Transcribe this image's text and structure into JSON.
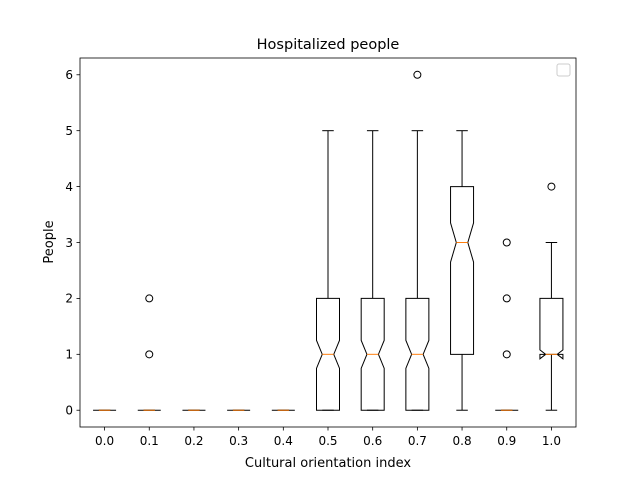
{
  "chart_data": {
    "type": "box",
    "title": "Hospitalized people",
    "xlabel": "Cultural orientation index",
    "ylabel": "People",
    "ylim": [
      -0.3,
      6.3
    ],
    "notched": true,
    "legend": "top-right",
    "categories": [
      "0.0",
      "0.1",
      "0.2",
      "0.3",
      "0.4",
      "0.5",
      "0.6",
      "0.7",
      "0.8",
      "0.9",
      "1.0"
    ],
    "yticks": [
      "0",
      "1",
      "2",
      "3",
      "4",
      "5",
      "6"
    ],
    "boxes": [
      {
        "q1": 0,
        "median": 0,
        "q3": 0,
        "whisker_low": 0,
        "whisker_high": 0,
        "notch_low": 0,
        "notch_high": 0,
        "outliers": []
      },
      {
        "q1": 0,
        "median": 0,
        "q3": 0,
        "whisker_low": 0,
        "whisker_high": 0,
        "notch_low": 0,
        "notch_high": 0,
        "outliers": [
          1,
          2
        ]
      },
      {
        "q1": 0,
        "median": 0,
        "q3": 0,
        "whisker_low": 0,
        "whisker_high": 0,
        "notch_low": 0,
        "notch_high": 0,
        "outliers": []
      },
      {
        "q1": 0,
        "median": 0,
        "q3": 0,
        "whisker_low": 0,
        "whisker_high": 0,
        "notch_low": 0,
        "notch_high": 0,
        "outliers": []
      },
      {
        "q1": 0,
        "median": 0,
        "q3": 0,
        "whisker_low": 0,
        "whisker_high": 0,
        "notch_low": 0,
        "notch_high": 0,
        "outliers": []
      },
      {
        "q1": 0,
        "median": 1,
        "q3": 2,
        "whisker_low": 0,
        "whisker_high": 5,
        "notch_low": 0.75,
        "notch_high": 1.25,
        "outliers": []
      },
      {
        "q1": 0,
        "median": 1,
        "q3": 2,
        "whisker_low": 0,
        "whisker_high": 5,
        "notch_low": 0.75,
        "notch_high": 1.25,
        "outliers": []
      },
      {
        "q1": 0,
        "median": 1,
        "q3": 2,
        "whisker_low": 0,
        "whisker_high": 5,
        "notch_low": 0.75,
        "notch_high": 1.25,
        "outliers": [
          6
        ]
      },
      {
        "q1": 1,
        "median": 3,
        "q3": 4,
        "whisker_low": 0,
        "whisker_high": 5,
        "notch_low": 2.65,
        "notch_high": 3.35,
        "outliers": []
      },
      {
        "q1": 0,
        "median": 0,
        "q3": 0,
        "whisker_low": 0,
        "whisker_high": 0,
        "notch_low": 0,
        "notch_high": 0,
        "outliers": [
          1,
          2,
          3
        ]
      },
      {
        "q1": 1,
        "median": 1,
        "q3": 2,
        "whisker_low": 0,
        "whisker_high": 3,
        "notch_low": 0.92,
        "notch_high": 1.08,
        "outliers": [
          4
        ]
      }
    ],
    "colors": {
      "box": "#000000",
      "median": "#ff7f0e",
      "axis": "#000000",
      "legend_border": "#cccccc"
    }
  }
}
